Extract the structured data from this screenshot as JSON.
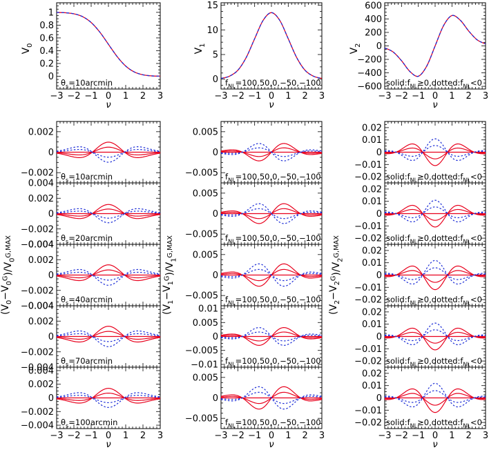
{
  "chart_data": {
    "type": "line",
    "description_free": true,
    "x_values_note_free": true,
    "columns": [
      {
        "top": {
          "ylabel": "V_0",
          "xlabel": "ν",
          "xlim": [
            -3,
            3
          ],
          "ylim": [
            -0.2,
            1.15
          ],
          "yticks": [
            0,
            0.2,
            0.4,
            0.6,
            0.8,
            1
          ],
          "ytick_labels": [
            "0",
            "0.2",
            "0.4",
            "0.6",
            "0.8",
            "1"
          ],
          "annotation": "θ_s=10arcmin",
          "series": [
            {
              "line": "solid",
              "color": "#e8001c",
              "x": [
                -3,
                -2.5,
                -2,
                -1.5,
                -1,
                -0.5,
                0,
                0.5,
                1,
                1.5,
                2,
                2.5,
                3
              ],
              "y": [
                0.999,
                0.994,
                0.977,
                0.933,
                0.841,
                0.691,
                0.5,
                0.309,
                0.159,
                0.067,
                0.023,
                0.006,
                0.001
              ]
            },
            {
              "line": "dashed",
              "color": "#1a2bd6",
              "x": [
                -3,
                -2.5,
                -2,
                -1.5,
                -1,
                -0.5,
                0,
                0.5,
                1,
                1.5,
                2,
                2.5,
                3
              ],
              "y": [
                0.999,
                0.994,
                0.977,
                0.933,
                0.841,
                0.691,
                0.5,
                0.309,
                0.159,
                0.067,
                0.023,
                0.006,
                0.001
              ]
            }
          ]
        },
        "ylabel_lower": "(V_0−V_0^G)/V_0^G,MAX",
        "panels": [
          {
            "annotation": "θ_s=10arcmin",
            "ylim": [
              -0.003,
              0.003
            ],
            "yticks": [
              -0.002,
              0,
              0.002
            ],
            "ytick_labels": [
              "−0.002",
              "0",
              "0.002"
            ],
            "amplitude": 0.0014
          },
          {
            "annotation": "θ_s=20arcmin",
            "ylim": [
              -0.004,
              0.004
            ],
            "yticks": [
              -0.004,
              -0.002,
              0,
              0.002,
              0.004
            ],
            "ytick_labels": [
              "−0.004",
              "−0.002",
              "0",
              "0.002",
              "0.004"
            ],
            "amplitude": 0.0017
          },
          {
            "annotation": "θ_s=40arcmin",
            "ylim": [
              -0.004,
              0.004
            ],
            "yticks": [
              -0.004,
              -0.002,
              0,
              0.002,
              0.004
            ],
            "ytick_labels": [
              "−0.004",
              "−0.002",
              "0",
              "0.002",
              "0.004"
            ],
            "amplitude": 0.0019
          },
          {
            "annotation": "θ_s=70arcmin",
            "ylim": [
              -0.004,
              0.004
            ],
            "yticks": [
              -0.004,
              -0.002,
              0,
              0.002,
              0.004
            ],
            "ytick_labels": [
              "−0.004",
              "−0.002",
              "0",
              "0.002",
              "0.004"
            ],
            "amplitude": 0.0019
          },
          {
            "annotation": "θ_s=100arcmin",
            "ylim": [
              -0.0045,
              0.0045
            ],
            "yticks": [
              -0.004,
              -0.002,
              0,
              0.002,
              0.004
            ],
            "ytick_labels": [
              "−0.004",
              "−0.002",
              "0",
              "0.002",
              "0.004"
            ],
            "amplitude": 0.002
          }
        ]
      },
      {
        "top": {
          "ylabel": "V_1",
          "xlabel": "ν",
          "xlim": [
            -3,
            3
          ],
          "ylim": [
            -2,
            15.5
          ],
          "yticks": [
            0,
            5,
            10,
            15
          ],
          "ytick_labels": [
            "0",
            "5",
            "10",
            "15"
          ],
          "annotation": "f_NL=100,50,0,−50,−100",
          "series": [
            {
              "line": "solid",
              "color": "#e8001c",
              "x": [
                -3,
                -2.5,
                -2,
                -1.5,
                -1,
                -0.5,
                0,
                0.5,
                1,
                1.5,
                2,
                2.5,
                3
              ],
              "y": [
                0.15,
                0.6,
                1.8,
                4.4,
                8.2,
                11.9,
                13.5,
                11.9,
                8.2,
                4.4,
                1.8,
                0.6,
                0.15
              ]
            },
            {
              "line": "dashed",
              "color": "#1a2bd6",
              "x": [
                -3,
                -2.5,
                -2,
                -1.5,
                -1,
                -0.5,
                0,
                0.5,
                1,
                1.5,
                2,
                2.5,
                3
              ],
              "y": [
                0.15,
                0.6,
                1.8,
                4.4,
                8.2,
                11.9,
                13.5,
                11.9,
                8.2,
                4.4,
                1.8,
                0.6,
                0.15
              ]
            }
          ]
        },
        "ylabel_lower": "(V_1−V_1^G)/V_1^G,MAX",
        "panels": [
          {
            "annotation": "f_NL=100,50,0,−50,−100",
            "ylim": [
              -0.0075,
              0.0075
            ],
            "yticks": [
              -0.005,
              0,
              0.005
            ],
            "ytick_labels": [
              "−0.005",
              "0",
              "0.005"
            ],
            "amplitude": 0.0028
          },
          {
            "annotation": "f_NL=100,50,0,−50,−100",
            "ylim": [
              -0.0075,
              0.0075
            ],
            "yticks": [
              -0.005,
              0,
              0.005
            ],
            "ytick_labels": [
              "−0.005",
              "0",
              "0.005"
            ],
            "amplitude": 0.0032
          },
          {
            "annotation": "f_NL=100,50,0,−50,−100",
            "ylim": [
              -0.0075,
              0.0075
            ],
            "yticks": [
              -0.005,
              0,
              0.005
            ],
            "ytick_labels": [
              "−0.005",
              "0",
              "0.005"
            ],
            "amplitude": 0.0036
          },
          {
            "annotation": "f_NL=100,50,0,−50,−100",
            "ylim": [
              -0.011,
              0.011
            ],
            "yticks": [
              -0.01,
              -0.005,
              0,
              0.005,
              0.01
            ],
            "ytick_labels": [
              "−0.01",
              "−0.005",
              "0",
              "0.005",
              "0.01"
            ],
            "amplitude": 0.0042
          },
          {
            "annotation": "f_NL=100,50,0,−50,−100",
            "ylim": [
              -0.0075,
              0.0075
            ],
            "yticks": [
              -0.005,
              0,
              0.005
            ],
            "ytick_labels": [
              "−0.005",
              "0",
              "0.005"
            ],
            "amplitude": 0.0036
          }
        ]
      },
      {
        "top": {
          "ylabel": "V_2",
          "xlabel": "ν",
          "xlim": [
            -3,
            3
          ],
          "ylim": [
            -640,
            640
          ],
          "yticks": [
            -600,
            -400,
            -200,
            0,
            200,
            400,
            600
          ],
          "ytick_labels": [
            "−600",
            "−400",
            "−200",
            "0",
            "200",
            "400",
            "600"
          ],
          "annotation": "solid:f_NL≥0,dotted:f_NL<0",
          "series": [
            {
              "line": "solid",
              "color": "#e8001c",
              "x": [
                -3,
                -2.5,
                -2,
                -1.5,
                -1,
                -0.5,
                0,
                0.5,
                1,
                1.5,
                2,
                2.5,
                3
              ],
              "y": [
                -30,
                -90,
                -220,
                -380,
                -450,
                -300,
                0,
                300,
                450,
                380,
                220,
                90,
                30
              ]
            },
            {
              "line": "dashed",
              "color": "#1a2bd6",
              "x": [
                -3,
                -2.5,
                -2,
                -1.5,
                -1,
                -0.5,
                0,
                0.5,
                1,
                1.5,
                2,
                2.5,
                3
              ],
              "y": [
                -30,
                -90,
                -220,
                -380,
                -450,
                -300,
                0,
                300,
                450,
                380,
                220,
                90,
                30
              ]
            }
          ]
        },
        "ylabel_lower": "(V_2−V_2^G)/V_2^G,MAX",
        "panels": [
          {
            "annotation": "solid:f_NL≥0,dotted:f_NL<0",
            "ylim": [
              -0.025,
              0.025
            ],
            "yticks": [
              -0.02,
              -0.01,
              0,
              0.01,
              0.02
            ],
            "ytick_labels": [
              "−0.02",
              "−0.01",
              "0",
              "0.01",
              "0.02"
            ],
            "amplitude": 0.011
          },
          {
            "annotation": "solid:f_NL≥0,dotted:f_NL<0",
            "ylim": [
              -0.025,
              0.025
            ],
            "yticks": [
              -0.02,
              -0.01,
              0,
              0.01,
              0.02
            ],
            "ytick_labels": [
              "−0.02",
              "−0.01",
              "0",
              "0.01",
              "0.02"
            ],
            "amplitude": 0.011
          },
          {
            "annotation": "solid:f_NL≥0,dotted:f_NL<0",
            "ylim": [
              -0.025,
              0.025
            ],
            "yticks": [
              -0.02,
              -0.01,
              0,
              0.01,
              0.02
            ],
            "ytick_labels": [
              "−0.02",
              "−0.01",
              "0",
              "0.01",
              "0.02"
            ],
            "amplitude": 0.012
          },
          {
            "annotation": "solid:f_NL≥0,dotted:f_NL<0",
            "ylim": [
              -0.025,
              0.025
            ],
            "yticks": [
              -0.02,
              -0.01,
              0,
              0.01,
              0.02
            ],
            "ytick_labels": [
              "−0.02",
              "−0.01",
              "0",
              "0.01",
              "0.02"
            ],
            "amplitude": 0.011
          },
          {
            "annotation": "solid:f_NL≥0,dotted:f_NL<0",
            "ylim": [
              -0.025,
              0.025
            ],
            "yticks": [
              -0.02,
              -0.01,
              0,
              0.01,
              0.02
            ],
            "ytick_labels": [
              "−0.02",
              "−0.01",
              "0",
              "0.01",
              "0.02"
            ],
            "amplitude": 0.012
          }
        ]
      }
    ],
    "xticks": [
      -3,
      -2,
      -1,
      0,
      1,
      2,
      3
    ],
    "xtick_labels": [
      "−3",
      "−2",
      "−1",
      "0",
      "1",
      "2",
      "3"
    ],
    "xlabel": "ν",
    "fnl_levels": [
      100,
      50,
      0,
      -50,
      -100
    ],
    "colors": {
      "solid": "#e8001c",
      "dotted": "#1a2bd6",
      "axis": "#000000"
    }
  }
}
